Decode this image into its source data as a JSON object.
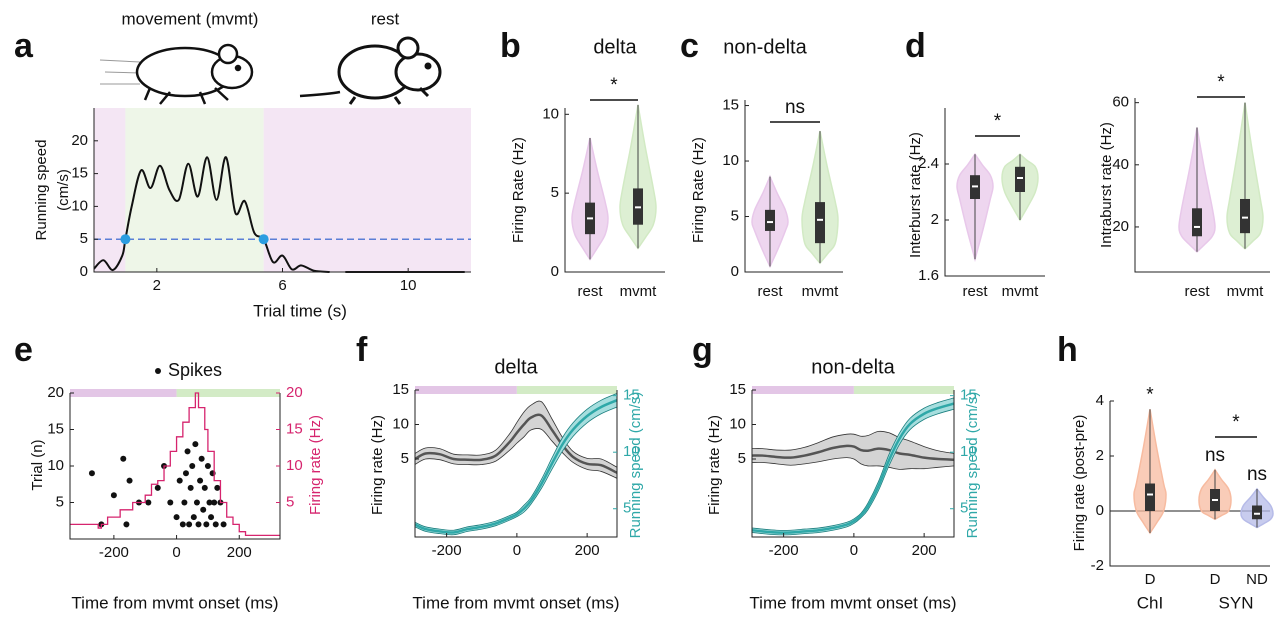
{
  "chart_data": [
    {
      "type": "line",
      "panel": "a",
      "top_labels": [
        "movement (mvmt)",
        "rest"
      ],
      "ylabel": [
        "Running speed",
        "(cm/s)"
      ],
      "xlabel": "Trial time (s)",
      "x": [
        0,
        0.3,
        0.6,
        0.9,
        1.0,
        1.2,
        1.5,
        1.8,
        2.1,
        2.4,
        2.7,
        3.0,
        3.3,
        3.6,
        3.9,
        4.2,
        4.5,
        4.8,
        5.1,
        5.4,
        5.7,
        6.0,
        6.3,
        6.6,
        7.0,
        7.5,
        7.8,
        8.0,
        11.8
      ],
      "series": [
        {
          "color": "#111111",
          "values": [
            0.5,
            1.8,
            0.3,
            2.5,
            5,
            10,
            15.5,
            12.8,
            16.2,
            12.5,
            11,
            16.5,
            11.5,
            17.5,
            11,
            17.5,
            9,
            10.8,
            6,
            5,
            1.5,
            2.5,
            0.4,
            1,
            0.2,
            0,
            null,
            0,
            0
          ]
        }
      ],
      "threshold": 5,
      "threshold_color": "#5b7fd6",
      "markers": {
        "x": [
          1.0,
          5.4
        ],
        "y": [
          5,
          5
        ],
        "color": "#2b9de0"
      },
      "regions": [
        {
          "xlim": [
            0,
            1
          ],
          "color": "#f4e6f4"
        },
        {
          "xlim": [
            1,
            5.4
          ],
          "color": "#eef6e8"
        },
        {
          "xlim": [
            5.4,
            12
          ],
          "color": "#f4e6f4"
        }
      ],
      "xlim": [
        0,
        12
      ],
      "xticks": [
        2,
        6,
        10
      ],
      "ylim": [
        0,
        25
      ],
      "yticks": [
        0,
        5,
        10,
        15,
        20
      ]
    },
    {
      "type": "violin",
      "panel": "b",
      "title": "delta",
      "ylabel": "Firing Rate (Hz)",
      "categories": [
        "rest",
        "mvmt"
      ],
      "boxes": [
        {
          "min": 0.8,
          "q1": 2.4,
          "median": 3.4,
          "q3": 4.4,
          "max": 8.5,
          "color": "#e8c8ea"
        },
        {
          "min": 1.5,
          "q1": 3,
          "median": 4.1,
          "q3": 5.3,
          "max": 10.6,
          "color": "#d2eac4"
        }
      ],
      "significance": [
        {
          "text": "*",
          "between": [
            0,
            1
          ]
        }
      ],
      "ylim": [
        0,
        10.4
      ],
      "yticks": [
        0,
        5,
        10
      ]
    },
    {
      "type": "violin",
      "panel": "c",
      "title": "non-delta",
      "ylabel": "Firing Rate (Hz)",
      "categories": [
        "rest",
        "mvmt"
      ],
      "boxes": [
        {
          "min": 0.5,
          "q1": 3.7,
          "median": 4.5,
          "q3": 5.6,
          "max": 8.6,
          "color": "#e8c8ea"
        },
        {
          "min": 0.8,
          "q1": 2.6,
          "median": 4.7,
          "q3": 6.3,
          "max": 12.7,
          "color": "#d2eac4"
        }
      ],
      "significance": [
        {
          "text": "ns",
          "between": [
            0,
            1
          ]
        }
      ],
      "ylim": [
        0,
        15.5
      ],
      "yticks": [
        0,
        5,
        10,
        15
      ]
    },
    {
      "type": "violin",
      "panel": "d",
      "ylabel": "Interburst rate (Hz)",
      "categories": [
        "rest",
        "mvmt"
      ],
      "boxes": [
        {
          "min": 1.72,
          "q1": 2.15,
          "median": 2.24,
          "q3": 2.32,
          "max": 2.47,
          "color": "#e8c8ea"
        },
        {
          "min": 2.0,
          "q1": 2.2,
          "median": 2.3,
          "q3": 2.38,
          "max": 2.47,
          "color": "#d2eac4"
        }
      ],
      "significance": [
        {
          "text": "*",
          "between": [
            0,
            1
          ]
        }
      ],
      "ylim": [
        1.6,
        2.8
      ],
      "yticks": [
        1.6,
        2,
        2.4
      ]
    },
    {
      "type": "violin",
      "ylabel": "Intraburst rate (Hz)",
      "categories": [
        "rest",
        "mvmt"
      ],
      "boxes": [
        {
          "min": 12,
          "q1": 17,
          "median": 20,
          "q3": 26,
          "max": 52,
          "color": "#e8c8ea"
        },
        {
          "min": 13,
          "q1": 18,
          "median": 23,
          "q3": 29,
          "max": 60,
          "color": "#d2eac4"
        }
      ],
      "significance": [
        {
          "text": "*",
          "between": [
            0,
            1
          ]
        }
      ],
      "ylim": [
        5.5,
        61.5
      ],
      "yticks": [
        20,
        40,
        60
      ]
    },
    {
      "type": "raster",
      "panel": "e",
      "legend": "Spikes",
      "ylabel": "Trial (n)",
      "y2label": "Firing rate (Hz)",
      "xlabel": "Time from mvmt onset (ms)",
      "spikes": {
        "x": [
          -270,
          -240,
          -200,
          -170,
          -160,
          -150,
          -120,
          -90,
          -60,
          -40,
          -20,
          0,
          10,
          20,
          25,
          30,
          35,
          40,
          45,
          50,
          55,
          60,
          65,
          70,
          75,
          80,
          85,
          90,
          95,
          100,
          105,
          110,
          115,
          120,
          125,
          130,
          140,
          150
        ],
        "trial": [
          9,
          2,
          6,
          11,
          2,
          8,
          5,
          5,
          7,
          10,
          5,
          3,
          8,
          2,
          5,
          9,
          12,
          2,
          7,
          10,
          3,
          13,
          5,
          2,
          8,
          11,
          4,
          7,
          2,
          10,
          5,
          3,
          9,
          5,
          2,
          7,
          5,
          2
        ],
        "color": "#111111"
      },
      "rate": {
        "x": [
          -340,
          -250,
          -240,
          -220,
          -180,
          -140,
          -100,
          -80,
          -60,
          -40,
          -20,
          0,
          20,
          40,
          60,
          70,
          90,
          100,
          120,
          140,
          160,
          180,
          200,
          220,
          240,
          330
        ],
        "values": [
          2,
          1.5,
          2,
          3,
          4,
          5,
          6,
          7.5,
          8,
          10,
          12,
          14,
          16,
          18,
          20,
          18,
          15,
          12,
          8,
          5,
          3,
          2,
          1,
          0.5,
          0.5,
          0.5
        ],
        "color": "#d6246e",
        "axis": "y2"
      },
      "bars": [
        {
          "xlim": [
            -340,
            0
          ],
          "color": "#e3c6e6"
        },
        {
          "xlim": [
            0,
            330
          ],
          "color": "#d3ebc6"
        }
      ],
      "xlim": [
        -340,
        330
      ],
      "xticks": [
        -200,
        0,
        200
      ],
      "ylim": [
        0,
        20
      ],
      "yticks": [
        5,
        10,
        15,
        20
      ],
      "y2lim": [
        0,
        20
      ],
      "y2ticks": [
        5,
        10,
        15,
        20
      ]
    },
    {
      "type": "band_line",
      "panel": "f",
      "title": "delta",
      "ylabel": "Firing rate (Hz)",
      "y2label": "Running speed (cm/s)",
      "xlabel": "Time from mvmt onset (ms)",
      "x": [
        -290,
        -260,
        -220,
        -180,
        -140,
        -100,
        -60,
        -20,
        0,
        20,
        40,
        70,
        100,
        130,
        160,
        200,
        240,
        285
      ],
      "series": [
        {
          "color": "#555555",
          "values": [
            5,
            5.8,
            5.7,
            5,
            4.9,
            4.9,
            5.5,
            7.5,
            8.8,
            10,
            11,
            11.3,
            9.2,
            7,
            5.3,
            4.3,
            4.1,
            3
          ],
          "lower": [
            4.2,
            5,
            4.9,
            4.3,
            4.2,
            4.2,
            4.7,
            6.3,
            7.3,
            8.2,
            9.2,
            9.3,
            7.6,
            5.9,
            4.5,
            3.5,
            3.2,
            2.2
          ],
          "upper": [
            5.8,
            6.6,
            6.5,
            5.7,
            5.6,
            5.6,
            6.3,
            8.7,
            10.3,
            11.8,
            12.8,
            13.3,
            10.8,
            8.1,
            6.1,
            5.1,
            5,
            3.8
          ]
        },
        {
          "color": "#2fa8a8",
          "axis": "y2",
          "values": [
            3.6,
            3.2,
            3,
            2.9,
            3.2,
            3.4,
            3.7,
            4.2,
            4.5,
            5,
            5.7,
            7.2,
            9,
            10.7,
            12,
            13.2,
            14,
            14.6
          ],
          "lower": [
            3.4,
            3,
            2.8,
            2.7,
            3,
            3.2,
            3.5,
            4,
            4.3,
            4.7,
            5.4,
            6.8,
            8.5,
            10.1,
            11.4,
            12.6,
            13.4,
            14
          ],
          "upper": [
            3.8,
            3.4,
            3.2,
            3.1,
            3.4,
            3.6,
            3.9,
            4.4,
            4.7,
            5.3,
            6,
            7.6,
            9.5,
            11.3,
            12.6,
            13.8,
            14.6,
            15.2
          ]
        }
      ],
      "bars": [
        {
          "xlim": [
            -290,
            0
          ],
          "color": "#e3c6e6"
        },
        {
          "xlim": [
            0,
            285
          ],
          "color": "#d3ebc6"
        }
      ],
      "xlim": [
        -290,
        285
      ],
      "xticks": [
        -200,
        0,
        200
      ],
      "ylim": [
        -6.3,
        15
      ],
      "yticks": [
        5,
        10,
        15
      ],
      "y2lim": [
        2.5,
        15.5
      ],
      "y2ticks": [
        5,
        10,
        15
      ]
    },
    {
      "type": "band_line",
      "panel": "g",
      "title": "non-delta",
      "ylabel": "Firing rate (Hz)",
      "y2label": "Running speed (cm/s)",
      "xlabel": "Time from mvmt onset (ms)",
      "x": [
        -290,
        -260,
        -220,
        -180,
        -140,
        -100,
        -60,
        -20,
        0,
        20,
        40,
        70,
        100,
        130,
        160,
        200,
        240,
        285
      ],
      "series": [
        {
          "color": "#555555",
          "values": [
            5.5,
            5.5,
            5.3,
            5.2,
            5.5,
            6,
            6.6,
            6.9,
            6.8,
            6.3,
            6.2,
            6.5,
            6.3,
            5.8,
            5.6,
            5.2,
            5,
            4.9
          ],
          "lower": [
            4.5,
            4.5,
            4.3,
            4.1,
            4.3,
            4.6,
            5,
            5.2,
            5,
            4.3,
            4,
            4,
            3.8,
            3.5,
            3.6,
            3.6,
            3.8,
            4
          ],
          "upper": [
            6.5,
            6.5,
            6.3,
            6.3,
            6.7,
            7.4,
            8.2,
            8.6,
            8.6,
            8.3,
            8.4,
            9,
            8.8,
            8.1,
            7.6,
            6.8,
            6.2,
            5.8
          ]
        },
        {
          "color": "#2fa8a8",
          "axis": "y2",
          "values": [
            3.1,
            3,
            2.9,
            2.9,
            3,
            3.1,
            3.3,
            3.6,
            3.9,
            4.4,
            5.2,
            7,
            9.3,
            11.2,
            12.5,
            13.4,
            13.9,
            14.3
          ],
          "lower": [
            2.9,
            2.8,
            2.7,
            2.7,
            2.8,
            2.9,
            3.1,
            3.4,
            3.7,
            4.2,
            4.9,
            6.6,
            8.8,
            10.7,
            12,
            12.9,
            13.4,
            13.8
          ],
          "upper": [
            3.3,
            3.2,
            3.1,
            3.1,
            3.2,
            3.3,
            3.5,
            3.8,
            4.1,
            4.6,
            5.5,
            7.4,
            9.8,
            11.7,
            13,
            13.9,
            14.4,
            14.8
          ]
        }
      ],
      "bars": [
        {
          "xlim": [
            -290,
            0
          ],
          "color": "#e3c6e6"
        },
        {
          "xlim": [
            0,
            285
          ],
          "color": "#d3ebc6"
        }
      ],
      "xlim": [
        -290,
        285
      ],
      "xticks": [
        -200,
        0,
        200
      ],
      "ylim": [
        -6.3,
        15
      ],
      "yticks": [
        5,
        10,
        15
      ],
      "y2lim": [
        2.5,
        15.5
      ],
      "y2ticks": [
        5,
        10,
        15
      ]
    },
    {
      "type": "violin",
      "panel": "h",
      "ylabel": "Firing rate (post-pre)",
      "categories": [
        "D",
        "D",
        "ND"
      ],
      "groups": [
        "ChI",
        "SYN"
      ],
      "boxes": [
        {
          "min": -0.8,
          "q1": 0,
          "median": 0.6,
          "q3": 1,
          "max": 3.7,
          "color": "#f7bba0",
          "group": 0
        },
        {
          "min": -0.3,
          "q1": 0,
          "median": 0.4,
          "q3": 0.8,
          "max": 1.5,
          "color": "#f7bba0",
          "group": 1
        },
        {
          "min": -0.6,
          "q1": -0.3,
          "median": -0.1,
          "q3": 0.2,
          "max": 0.8,
          "color": "#b6bbe8",
          "group": 1
        }
      ],
      "significance": [
        {
          "text": "*",
          "at": 0
        },
        {
          "text": "ns",
          "at": 1
        },
        {
          "text": "ns",
          "at": 2
        },
        {
          "text": "*",
          "between": [
            1,
            2
          ]
        }
      ],
      "zero_line": 0,
      "ylim": [
        -2,
        4
      ],
      "yticks": [
        -2,
        0,
        2,
        4
      ]
    }
  ]
}
